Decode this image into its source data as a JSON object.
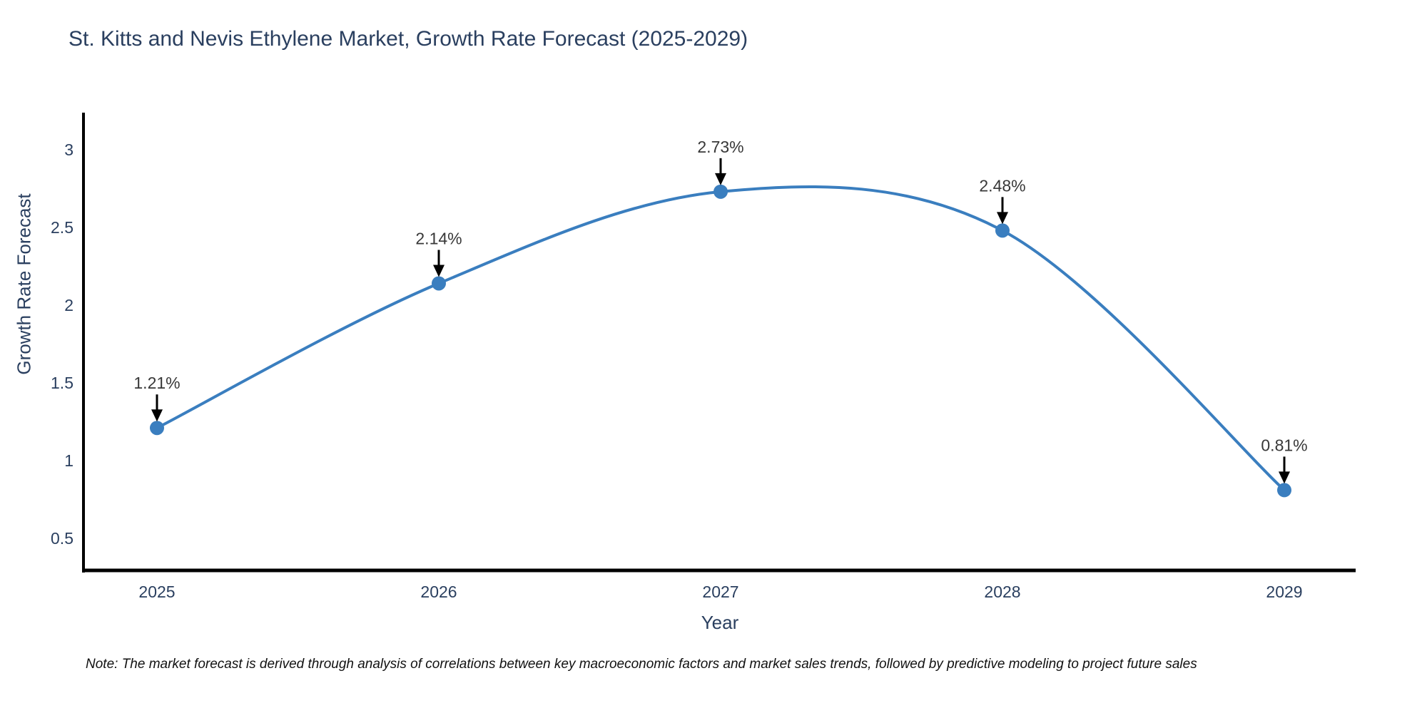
{
  "title": "St. Kitts and Nevis Ethylene Market, Growth Rate Forecast (2025-2029)",
  "note": "Note: The market forecast is derived through analysis of correlations between key macroeconomic factors and market sales trends, followed by predictive modeling to project future sales",
  "chart_data": {
    "type": "line",
    "line_shape": "spline",
    "title": "St. Kitts and Nevis Ethylene Market, Growth Rate Forecast (2025-2029)",
    "xlabel": "Year",
    "ylabel": "Growth Rate Forecast",
    "x": [
      2025,
      2026,
      2027,
      2028,
      2029
    ],
    "values": [
      1.21,
      2.14,
      2.73,
      2.48,
      0.81
    ],
    "point_labels": [
      "1.21%",
      "2.14%",
      "2.73%",
      "2.48%",
      "0.81%"
    ],
    "xticks": [
      "2025",
      "2026",
      "2027",
      "2028",
      "2029"
    ],
    "yticks": [
      0.5,
      1,
      1.5,
      2,
      2.5,
      3
    ],
    "ylim": [
      0.28,
      3.45
    ],
    "grid": false,
    "legend": "none",
    "annotations_have_arrows": true,
    "colors": {
      "line": "#3a7ebf",
      "marker": "#3a7ebf",
      "axis_line": "#000000",
      "axis_text": "#2a3f5f",
      "annotation_text": "#383838",
      "arrow": "#000000",
      "background": "#ffffff"
    }
  }
}
